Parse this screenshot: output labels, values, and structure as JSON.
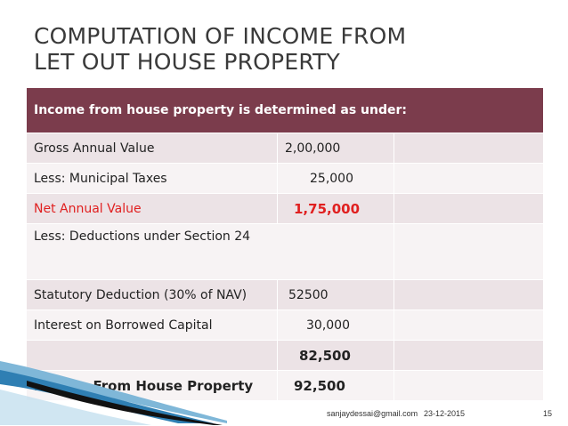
{
  "slide": {
    "title_line1": "COMPUTATION OF INCOME FROM",
    "title_line2": "LET OUT HOUSE PROPERTY"
  },
  "table": {
    "header": "Income from house property is determined as under:",
    "rows": [
      {
        "label": "Gross Annual Value",
        "value": "2,00,000"
      },
      {
        "label": "Less: Municipal Taxes",
        "value": "25,000"
      },
      {
        "label": "Net Annual Value",
        "value": "1,75,000"
      },
      {
        "label": "Less: Deductions under Section 24",
        "value": ""
      },
      {
        "label": "Statutory Deduction (30% of NAV)",
        "value": "52500"
      },
      {
        "label": "Interest on Borrowed Capital",
        "value": "30,000"
      },
      {
        "label": "",
        "value": "82,500"
      },
      {
        "label": "Income From House Property",
        "value": "92,500"
      }
    ]
  },
  "footer": {
    "email": "sanjaydessai@gmail.com",
    "date": "23-12-2015",
    "page": "15"
  },
  "colors": {
    "header_bg": "#7b3c4c",
    "row_light": "#ece3e6",
    "row_white": "#f7f3f4",
    "highlight_red": "#e02020"
  }
}
